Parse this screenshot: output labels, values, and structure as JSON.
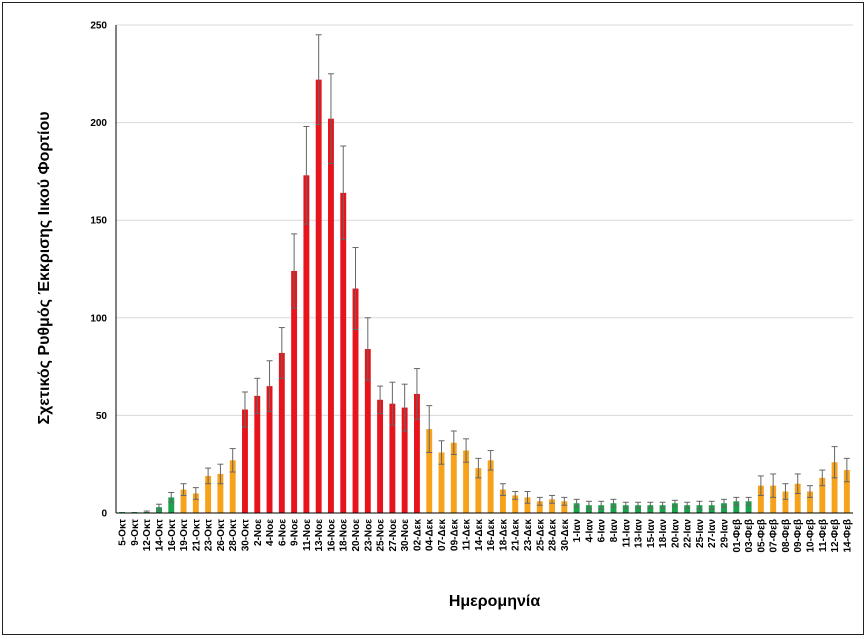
{
  "chart_data": {
    "type": "bar",
    "title": "",
    "xlabel": "Ημερομηνία",
    "ylabel": "Σχετικός Ρυθμός Έκκρισης Ιικού Φορτίου",
    "ylim": [
      0,
      250
    ],
    "yticks": [
      0,
      50,
      100,
      150,
      200,
      250
    ],
    "grid": true,
    "legend": "none",
    "colors": {
      "green": "#1aa34a",
      "orange": "#f7a21b",
      "red": "#e8141c",
      "error": "#666666",
      "grid": "#d9d9d9"
    },
    "categories": [
      "5-Οκτ",
      "9-Οκτ",
      "12-Οκτ",
      "14-Οκτ",
      "16-Οκτ",
      "19-Οκτ",
      "21-Οκτ",
      "23-Οκτ",
      "26-Οκτ",
      "28-Οκτ",
      "30-Οκτ",
      "2-Νοε",
      "4-Νοε",
      "6-Νοε",
      "9-Νοε",
      "11-Νοε",
      "13-Νοε",
      "16-Νοε",
      "18-Νοε",
      "20-Νοε",
      "23-Νοε",
      "25-Νοε",
      "27-Νοε",
      "30-Νοε",
      "02-Δεκ",
      "04-Δεκ",
      "07-Δεκ",
      "09-Δεκ",
      "11-Δεκ",
      "14-Δεκ",
      "16-Δεκ",
      "18-Δεκ",
      "21-Δεκ",
      "23-Δεκ",
      "25-Δεκ",
      "28-Δεκ",
      "30-Δεκ",
      "1-Ιαν",
      "4-Ιαν",
      "6-Ιαν",
      "8-Ιαν",
      "11-Ιαν",
      "13-Ιαν",
      "15-Ιαν",
      "18-Ιαν",
      "20-Ιαν",
      "22-Ιαν",
      "25-Ιαν",
      "27-Ιαν",
      "29-Ιαν",
      "01-Φεβ",
      "03-Φεβ",
      "05-Φεβ",
      "07-Φεβ",
      "08-Φεβ",
      "09-Φεβ",
      "10-Φεβ",
      "11-Φεβ",
      "12-Φεβ",
      "14-Φεβ"
    ],
    "values": [
      0.5,
      0.5,
      0.5,
      3,
      8,
      12,
      10,
      19,
      20,
      27,
      53,
      60,
      65,
      82,
      124,
      173,
      222,
      202,
      164,
      115,
      84,
      58,
      56,
      54,
      61,
      43,
      31,
      36,
      32,
      23,
      27,
      12,
      9,
      8,
      6,
      7,
      6,
      5,
      4,
      4,
      5,
      4,
      4,
      4,
      4,
      5,
      4,
      4,
      4,
      5,
      6,
      6,
      14,
      14,
      11,
      15,
      11,
      18,
      26,
      22
    ],
    "error": [
      0,
      0,
      0.5,
      1.5,
      2.5,
      3,
      3,
      4,
      5,
      6,
      9,
      9,
      13,
      13,
      19,
      25,
      23,
      23,
      24,
      21,
      16,
      7,
      11,
      12,
      13,
      12,
      6,
      6,
      6,
      5,
      5,
      3,
      2,
      3,
      2,
      2,
      2,
      2,
      2,
      2,
      2,
      1.5,
      1.5,
      1.5,
      1.5,
      1.5,
      1.5,
      2,
      2,
      2,
      2,
      2,
      5,
      6,
      4,
      5,
      3,
      4,
      8,
      6
    ],
    "bar_colors": [
      "green",
      "green",
      "green",
      "green",
      "green",
      "orange",
      "orange",
      "orange",
      "orange",
      "orange",
      "red",
      "red",
      "red",
      "red",
      "red",
      "red",
      "red",
      "red",
      "red",
      "red",
      "red",
      "red",
      "red",
      "red",
      "red",
      "orange",
      "orange",
      "orange",
      "orange",
      "orange",
      "orange",
      "orange",
      "orange",
      "orange",
      "orange",
      "orange",
      "orange",
      "green",
      "green",
      "green",
      "green",
      "green",
      "green",
      "green",
      "green",
      "green",
      "green",
      "green",
      "green",
      "green",
      "green",
      "green",
      "orange",
      "orange",
      "orange",
      "orange",
      "orange",
      "orange",
      "orange",
      "orange"
    ]
  }
}
